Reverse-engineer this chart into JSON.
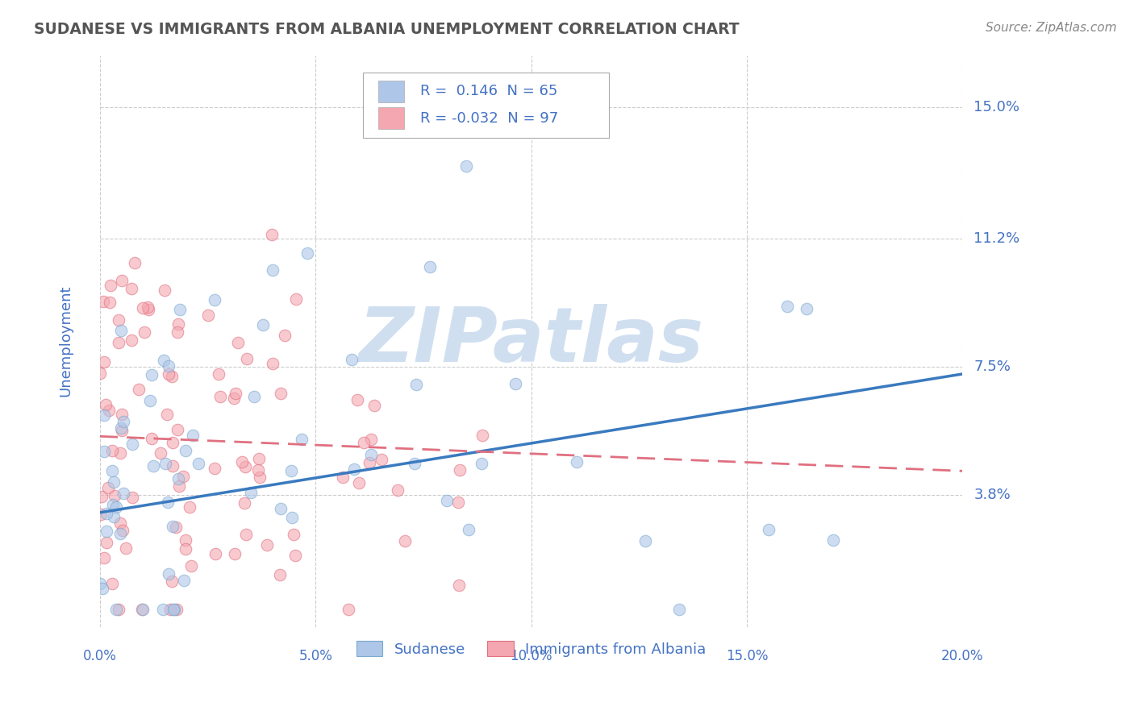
{
  "title": "SUDANESE VS IMMIGRANTS FROM ALBANIA UNEMPLOYMENT CORRELATION CHART",
  "source": "Source: ZipAtlas.com",
  "ylabel": "Unemployment",
  "xlim": [
    0.0,
    0.2
  ],
  "ylim": [
    0.0,
    0.165
  ],
  "yticks": [
    0.038,
    0.075,
    0.112,
    0.15
  ],
  "ytick_labels": [
    "3.8%",
    "7.5%",
    "11.2%",
    "15.0%"
  ],
  "xticks": [
    0.0,
    0.05,
    0.1,
    0.15,
    0.2
  ],
  "xtick_labels": [
    "0.0%",
    "5.0%",
    "10.0%",
    "15.0%",
    "20.0%"
  ],
  "background_color": "#ffffff",
  "grid_color": "#cccccc",
  "series1_name": "Sudanese",
  "series1_color": "#aec6e8",
  "series1_edge_color": "#7aaad0",
  "series1_line_color": "#3a7abf",
  "series1_R": 0.146,
  "series1_N": 65,
  "series2_name": "Immigrants from Albania",
  "series2_color": "#f4a7b0",
  "series2_edge_color": "#e07080",
  "series2_line_color": "#e07080",
  "series2_R": -0.032,
  "series2_N": 97,
  "watermark": "ZIPatlas",
  "watermark_color": "#d0dff0",
  "title_color": "#555555",
  "tick_label_color": "#4472c4",
  "legend_R_color": "#4472c4",
  "source_color": "#888888",
  "blue_line_start_y": 0.033,
  "blue_line_end_y": 0.073,
  "pink_line_start_y": 0.055,
  "pink_line_end_y": 0.045
}
